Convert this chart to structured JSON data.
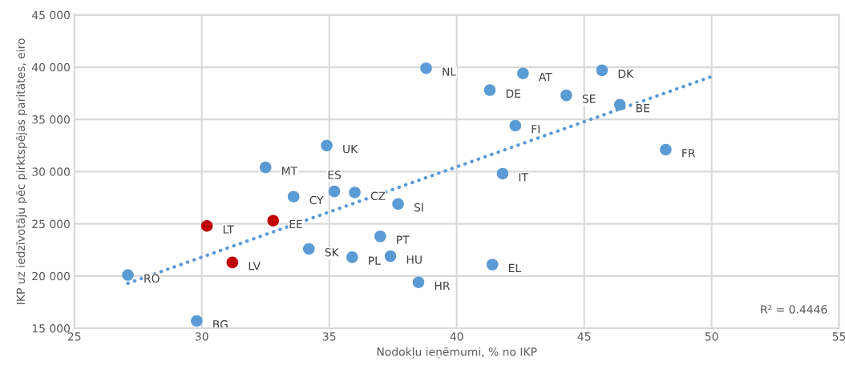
{
  "chart_data": {
    "type": "scatter",
    "xlabel": "Nodokļu ieņēmumi, % no IKP",
    "ylabel": "IKP uz iedzīvotāju pēc pirktspējas paritātes, eiro",
    "xlim": [
      25,
      55
    ],
    "xticks": [
      25,
      30,
      35,
      40,
      45,
      50,
      55
    ],
    "ylim": [
      15000,
      45000
    ],
    "yticks": [
      {
        "value": 15000,
        "label": "15 000"
      },
      {
        "value": 20000,
        "label": "20 000"
      },
      {
        "value": 25000,
        "label": "25 000"
      },
      {
        "value": 30000,
        "label": "30 000"
      },
      {
        "value": 35000,
        "label": "35 000"
      },
      {
        "value": 40000,
        "label": "40 000"
      },
      {
        "value": 45000,
        "label": "45 000"
      }
    ],
    "grid": true,
    "legend": false,
    "marker": "circle",
    "series": [
      {
        "x": [
          38.8,
          42.6,
          45.7,
          41.3,
          44.3,
          46.4,
          42.3,
          48.2,
          41.8,
          34.9,
          32.5,
          33.6,
          35.2,
          36.0,
          37.7,
          30.2,
          32.8,
          37.0,
          34.2,
          35.9,
          37.4,
          31.2,
          27.1,
          41.4,
          38.5,
          29.8
        ],
        "values": [
          39900,
          39400,
          39700,
          37800,
          37300,
          36400,
          34400,
          32100,
          29800,
          32500,
          30400,
          27600,
          28100,
          28000,
          26900,
          24800,
          25300,
          23800,
          22600,
          21800,
          21900,
          21300,
          20100,
          21100,
          19400,
          15700
        ],
        "colors": [
          "#5b9bd5",
          "#5b9bd5",
          "#5b9bd5",
          "#5b9bd5",
          "#5b9bd5",
          "#5b9bd5",
          "#5b9bd5",
          "#5b9bd5",
          "#5b9bd5",
          "#5b9bd5",
          "#5b9bd5",
          "#5b9bd5",
          "#5b9bd5",
          "#5b9bd5",
          "#5b9bd5",
          "#c00000",
          "#c00000",
          "#5b9bd5",
          "#5b9bd5",
          "#5b9bd5",
          "#5b9bd5",
          "#c00000",
          "#5b9bd5",
          "#5b9bd5",
          "#5b9bd5",
          "#5b9bd5"
        ]
      },
      {
        "type": "line",
        "x": [
          27.1,
          50
        ],
        "values": [
          19300,
          39100
        ],
        "color": "#5b9bd5",
        "line_style": "dotted",
        "marker": "none"
      }
    ],
    "annotations": [
      {
        "text": "NL",
        "x": 38.8,
        "y": 39900
      },
      {
        "text": "AT",
        "x": 42.6,
        "y": 39400
      },
      {
        "text": "DK",
        "x": 45.7,
        "y": 39700
      },
      {
        "text": "DE",
        "x": 41.3,
        "y": 37800
      },
      {
        "text": "SE",
        "x": 44.3,
        "y": 37300
      },
      {
        "text": "BE",
        "x": 46.4,
        "y": 36400
      },
      {
        "text": "FI",
        "x": 42.3,
        "y": 34400
      },
      {
        "text": "FR",
        "x": 48.2,
        "y": 32100
      },
      {
        "text": "IT",
        "x": 41.8,
        "y": 29800
      },
      {
        "text": "UK",
        "x": 34.9,
        "y": 32500
      },
      {
        "text": "MT",
        "x": 32.5,
        "y": 30400
      },
      {
        "text": "CY",
        "x": 33.6,
        "y": 27600
      },
      {
        "text": "ES",
        "x": 35.2,
        "y": 28100
      },
      {
        "text": "CZ",
        "x": 36.0,
        "y": 28000
      },
      {
        "text": "SI",
        "x": 37.7,
        "y": 26900
      },
      {
        "text": "LT",
        "x": 30.2,
        "y": 24800
      },
      {
        "text": "EE",
        "x": 32.8,
        "y": 25300
      },
      {
        "text": "PT",
        "x": 37.0,
        "y": 23800
      },
      {
        "text": "SK",
        "x": 34.2,
        "y": 22600
      },
      {
        "text": "PL",
        "x": 35.9,
        "y": 21800
      },
      {
        "text": "HU",
        "x": 37.4,
        "y": 21900
      },
      {
        "text": "LV",
        "x": 31.2,
        "y": 21300
      },
      {
        "text": "RO",
        "x": 27.1,
        "y": 20100
      },
      {
        "text": "EL",
        "x": 41.4,
        "y": 21100
      },
      {
        "text": "HR",
        "x": 38.5,
        "y": 19400
      },
      {
        "text": "BG",
        "x": 29.8,
        "y": 15700
      },
      "R² = 0.4446"
    ]
  }
}
